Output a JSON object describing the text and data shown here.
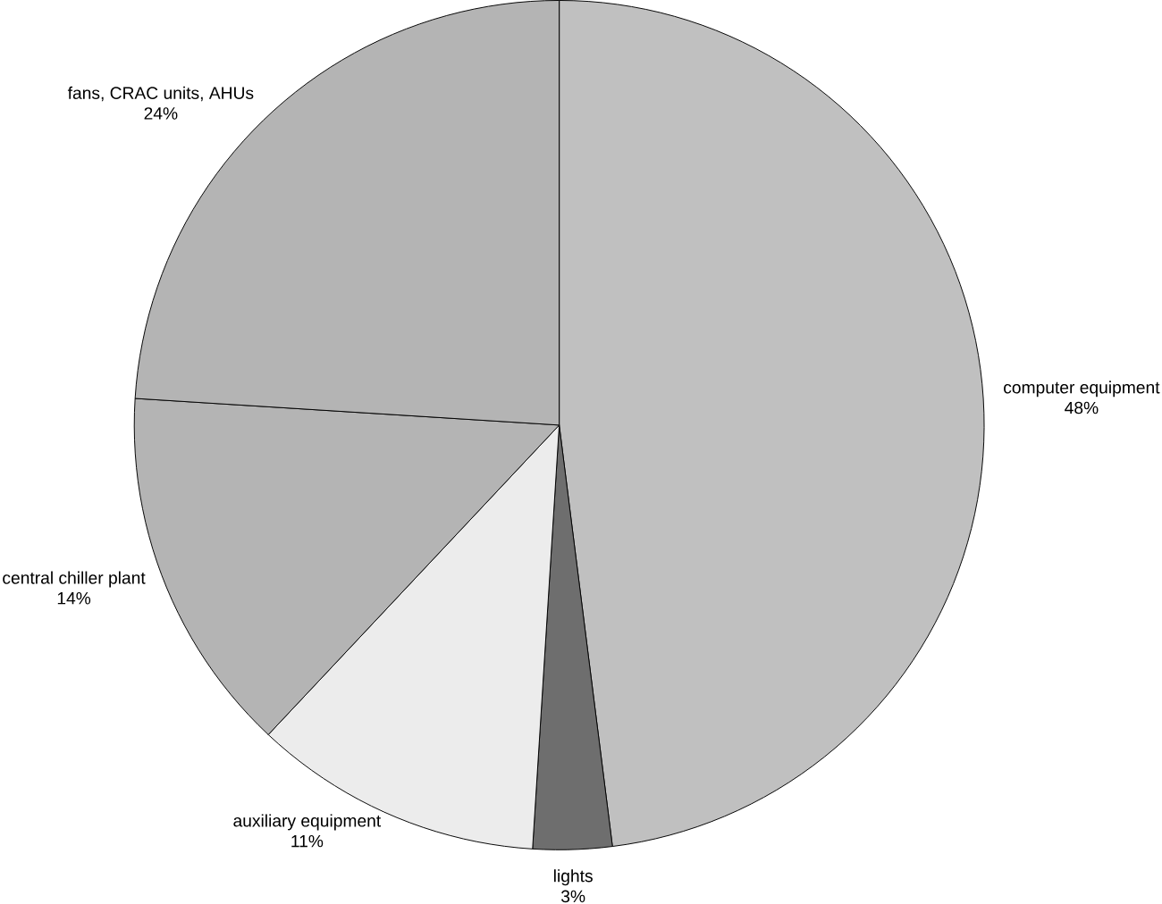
{
  "chart_data": {
    "type": "pie",
    "categories": [
      "computer equipment",
      "lights",
      "auxiliary equipment",
      "central chiller plant",
      "fans, CRAC units, AHUs"
    ],
    "values": [
      48,
      3,
      11,
      14,
      24
    ],
    "value_labels": [
      "48%",
      "3%",
      "11%",
      "14%",
      "24%"
    ],
    "colors": [
      "#c0c0c0",
      "#6e6e6e",
      "#ececec",
      "#b4b4b4",
      "#b4b4b4"
    ]
  }
}
